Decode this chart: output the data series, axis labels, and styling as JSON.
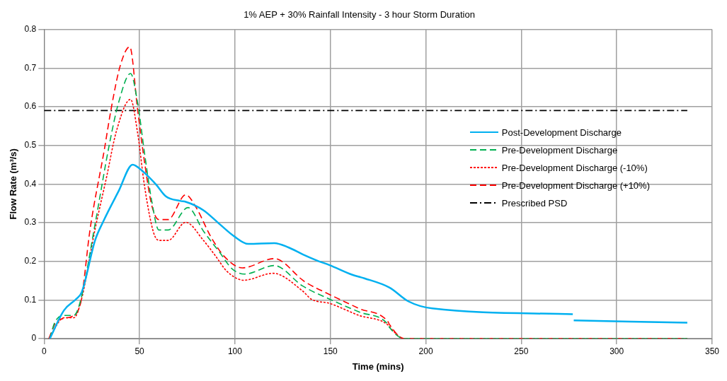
{
  "chart_data": {
    "type": "line",
    "title": "1% AEP + 30% Rainfall Intensity - 3 hour Storm Duration",
    "xlabel": "Time (mins)",
    "ylabel": "Flow Rate (m³/s)",
    "xlim": [
      0,
      350
    ],
    "xticks": [
      0,
      50,
      100,
      150,
      200,
      250,
      300,
      350
    ],
    "ylim": [
      0,
      0.8
    ],
    "yticks": [
      0,
      0.1,
      0.2,
      0.3,
      0.4,
      0.5,
      0.6,
      0.7,
      0.8
    ],
    "grid": true,
    "legend": "right",
    "marker": "none",
    "series": [
      {
        "name": "Post-Development Discharge",
        "color": "#00b0f0",
        "line_style": "solid",
        "x": [
          3,
          10.4,
          16.7,
          19.7,
          26.7,
          30.8,
          39,
          46.4,
          51.2,
          58.6,
          63.8,
          71.6,
          74.2,
          83.5,
          92,
          99.5,
          107,
          120.6,
          128,
          135.5,
          143,
          149.6,
          161.5,
          167.8,
          181,
          191,
          203.4,
          277,
          277.2,
          277.5,
          337
        ],
        "values": [
          0,
          0.073,
          0.102,
          0.12,
          0.254,
          0.301,
          0.381,
          0.45,
          0.435,
          0.399,
          0.368,
          0.356,
          0.354,
          0.332,
          0.296,
          0.265,
          0.245,
          0.247,
          0.236,
          0.218,
          0.202,
          0.19,
          0.165,
          0.156,
          0.132,
          0.096,
          0.078,
          0.063,
          null,
          0.047,
          0.041
        ]
      },
      {
        "name": "Pre-Development Discharge",
        "color": "#00b050",
        "line_style": "dashed",
        "x": [
          3,
          5.6,
          10.4,
          15.6,
          19.3,
          26.7,
          34.1,
          39,
          45.3,
          49,
          52.7,
          56.4,
          60.1,
          65,
          75.4,
          83.5,
          92,
          98.4,
          105,
          120.6,
          135.5,
          149.6,
          165,
          180,
          181,
          188.6,
          337
        ],
        "values": [
          0,
          0.042,
          0.06,
          0.06,
          0.102,
          0.296,
          0.5,
          0.61,
          0.686,
          0.61,
          0.477,
          0.356,
          0.281,
          0.281,
          0.339,
          0.278,
          0.223,
          0.181,
          0.167,
          0.189,
          0.136,
          0.102,
          0.069,
          0.038,
          0.029,
          0,
          0
        ]
      },
      {
        "name": "Pre-Development Discharge (-10%)",
        "color": "#ff0000",
        "line_style": "dotted",
        "x": [
          2.5,
          10.4,
          15.6,
          19.3,
          26.7,
          32.7,
          37.9,
          45.3,
          49,
          52.7,
          57.5,
          60.5,
          65,
          74.2,
          83.5,
          89.8,
          95.8,
          104.7,
          119.9,
          135.5,
          140,
          149.6,
          165,
          180,
          181,
          188.6,
          337
        ],
        "values": [
          0,
          0.054,
          0.054,
          0.096,
          0.283,
          0.417,
          0.537,
          0.619,
          0.532,
          0.392,
          0.272,
          0.254,
          0.254,
          0.301,
          0.254,
          0.214,
          0.174,
          0.151,
          0.169,
          0.123,
          0.102,
          0.091,
          0.06,
          0.036,
          0.03,
          0,
          0
        ]
      },
      {
        "name": "Pre-Development Discharge (+10%)",
        "color": "#ff0000",
        "line_style": "dashed",
        "x": [
          2.5,
          6.7,
          15.6,
          19.3,
          24.1,
          31.6,
          35.3,
          40,
          44.9,
          49,
          52.7,
          56.4,
          60.1,
          65,
          74.2,
          79.8,
          87.2,
          94.7,
          103.9,
          120.6,
          135.5,
          136.6,
          149.6,
          165,
          180,
          181,
          188.6,
          337
        ],
        "values": [
          0,
          0.045,
          0.06,
          0.096,
          0.283,
          0.49,
          0.599,
          0.708,
          0.755,
          0.592,
          0.454,
          0.345,
          0.308,
          0.308,
          0.372,
          0.338,
          0.265,
          0.211,
          0.183,
          0.207,
          0.151,
          0.147,
          0.114,
          0.078,
          0.045,
          0.036,
          0,
          0
        ]
      },
      {
        "name": "Prescribed PSD",
        "color": "#000000",
        "line_style": "dashdot",
        "x": [
          0,
          337
        ],
        "values": [
          0.59,
          0.59
        ]
      }
    ]
  }
}
